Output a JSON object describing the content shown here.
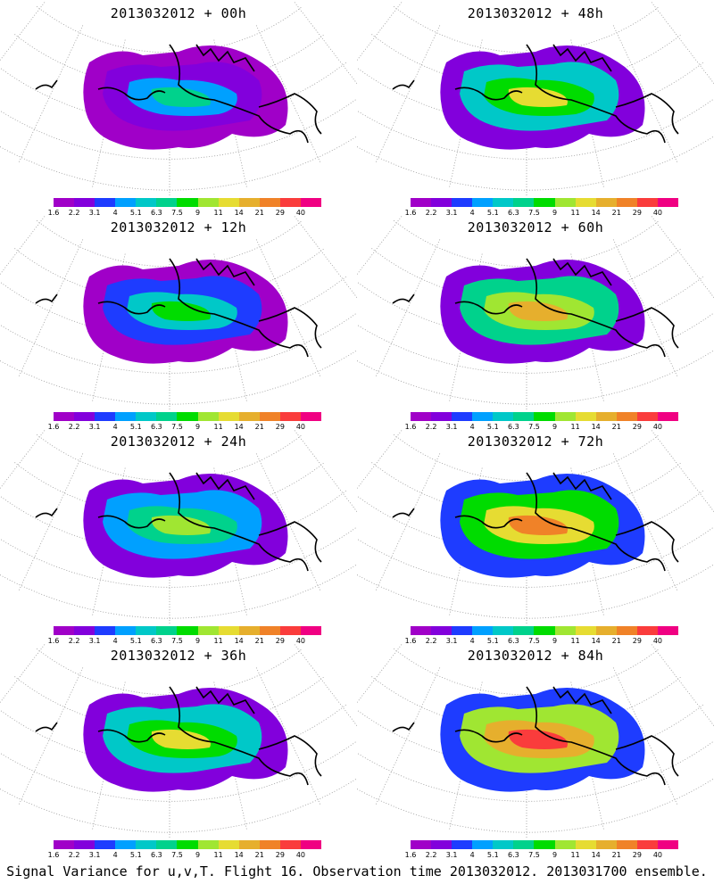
{
  "caption": "Signal Variance for u,v,T. Flight 16. Observation time 2013032012. 2013031700 ensemble.",
  "colorbar": {
    "colors": [
      "#a000c8",
      "#8200dc",
      "#1e3cff",
      "#00a0ff",
      "#00c8c8",
      "#00d28c",
      "#00dc00",
      "#a0e632",
      "#e6dc32",
      "#e6af2d",
      "#f08228",
      "#fa3c3c",
      "#f00082"
    ],
    "labels": [
      "1.6",
      "2.2",
      "3.1",
      "4",
      "5.1",
      "6.3",
      "7.5",
      "9",
      "11",
      "14",
      "21",
      "29",
      "40"
    ]
  },
  "panels": [
    {
      "title": "2013032012 + 00h",
      "lead_hours": 0
    },
    {
      "title": "2013032012 + 48h",
      "lead_hours": 48
    },
    {
      "title": "2013032012 + 12h",
      "lead_hours": 12
    },
    {
      "title": "2013032012 + 60h",
      "lead_hours": 60
    },
    {
      "title": "2013032012 + 24h",
      "lead_hours": 24
    },
    {
      "title": "2013032012 + 72h",
      "lead_hours": 72
    },
    {
      "title": "2013032012 + 36h",
      "lead_hours": 36
    },
    {
      "title": "2013032012 + 84h",
      "lead_hours": 84
    }
  ]
}
